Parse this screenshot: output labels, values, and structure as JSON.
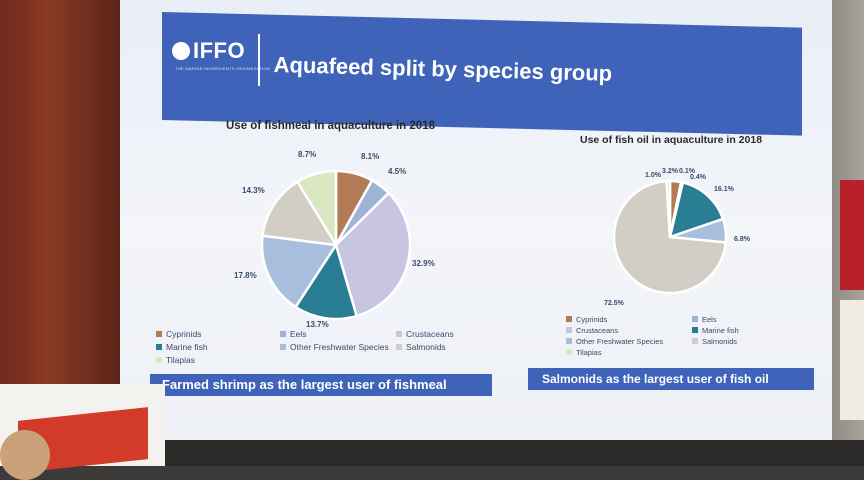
{
  "slide": {
    "logo": "IFFO",
    "logo_subtitle": "THE MARINE INGREDIENTS ORGANISATION",
    "title": "Aquafeed split by species group"
  },
  "chart_data": [
    {
      "type": "pie",
      "title": "Use of fishmeal in aquaculture in 2018",
      "legend_position": "bottom",
      "slices": [
        {
          "name": "Cyprinids",
          "value": 8.1,
          "label": "8.1%",
          "color": "#b27a55"
        },
        {
          "name": "Eels",
          "value": 4.5,
          "label": "4.5%",
          "color": "#9fb3d6"
        },
        {
          "name": "Crustaceans",
          "value": 32.9,
          "label": "32.9%",
          "color": "#c7c5e2"
        },
        {
          "name": "Marine fish",
          "value": 13.7,
          "label": "13.7%",
          "color": "#2a7e94"
        },
        {
          "name": "Other Freshwater Species",
          "value": 17.8,
          "label": "17.8%",
          "color": "#a9bedd"
        },
        {
          "name": "Salmonids",
          "value": 14.3,
          "label": "14.3%",
          "color": "#d2cdc5"
        },
        {
          "name": "Tilapias",
          "value": 8.7,
          "label": "8.7%",
          "color": "#d9e8c2"
        }
      ],
      "legend": [
        "Cyprinids",
        "Eels",
        "Crustaceans",
        "Marine fish",
        "Other Freshwater Species",
        "Salmonids",
        "Tilapias"
      ],
      "banner": "Farmed shrimp as the largest user of fishmeal"
    },
    {
      "type": "pie",
      "title": "Use of fish oil in aquaculture in 2018",
      "legend_position": "bottom",
      "slices": [
        {
          "name": "Cyprinids",
          "value": 3.2,
          "label": "3.2%",
          "color": "#b27a55"
        },
        {
          "name": "Eels",
          "value": 0.1,
          "label": "0.1%",
          "color": "#9fb3d6"
        },
        {
          "name": "Crustaceans",
          "value": 0.4,
          "label": "0.4%",
          "color": "#c7c5e2"
        },
        {
          "name": "Marine fish",
          "value": 16.1,
          "label": "16.1%",
          "color": "#2a7e94"
        },
        {
          "name": "Other Freshwater Species",
          "value": 6.8,
          "label": "6.8%",
          "color": "#a9bedd"
        },
        {
          "name": "Salmonids",
          "value": 72.5,
          "label": "72.5%",
          "color": "#d2cdc5"
        },
        {
          "name": "Tilapias",
          "value": 1.0,
          "label": "1.0%",
          "color": "#d9e8c2"
        }
      ],
      "legend": [
        "Cyprinids",
        "Eels",
        "Crustaceans",
        "Marine fish",
        "Other Freshwater Species",
        "Salmonids",
        "Tilapias"
      ],
      "banner": "Salmonids as the largest user of fish oil"
    }
  ]
}
